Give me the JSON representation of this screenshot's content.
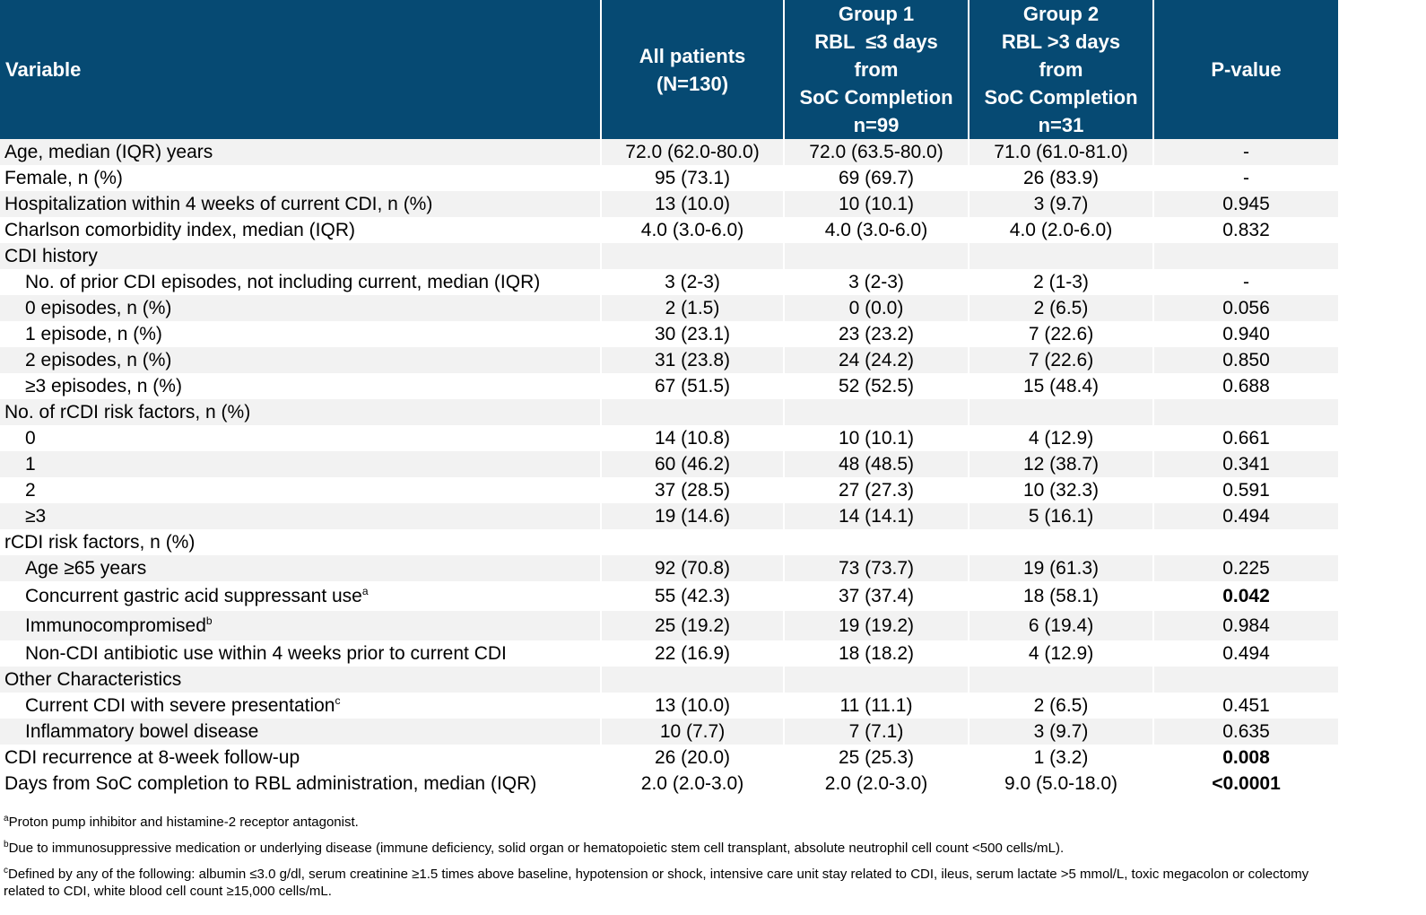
{
  "header": {
    "variable": "Variable",
    "all": [
      "All patients",
      "(N=130)"
    ],
    "group1": [
      "Group 1",
      "RBL  ≤3 days",
      "from",
      "SoC Completion",
      "n=99"
    ],
    "group2": [
      "Group 2",
      "RBL >3 days",
      "from",
      "SoC Completion",
      "n=31"
    ],
    "pvalue": "P-value"
  },
  "rows": [
    {
      "label": "Age, median (IQR) years",
      "sup": "",
      "all": "72.0 (62.0-80.0)",
      "g1": "72.0 (63.5-80.0)",
      "g2": "71.0 (61.0-81.0)",
      "p": "-"
    },
    {
      "label": "Female, n (%)",
      "sup": "",
      "all": "95 (73.1)",
      "g1": "69 (69.7)",
      "g2": "26 (83.9)",
      "p": "-"
    },
    {
      "label": "Hospitalization within 4 weeks of current CDI, n (%)",
      "sup": "",
      "all": "13 (10.0)",
      "g1": "10 (10.1)",
      "g2": "3 (9.7)",
      "p": "0.945"
    },
    {
      "label": "Charlson comorbidity index, median (IQR)",
      "sup": "",
      "all": "4.0 (3.0-6.0)",
      "g1": "4.0 (3.0-6.0)",
      "g2": "4.0 (2.0-6.0)",
      "p": "0.832"
    },
    {
      "label": "CDI history",
      "sup": "",
      "all": "",
      "g1": "",
      "g2": "",
      "p": ""
    },
    {
      "label": "No. of prior CDI episodes, not including current, median (IQR)",
      "sup": "",
      "all": "3 (2-3)",
      "g1": "3 (2-3)",
      "g2": "2 (1-3)",
      "p": "-"
    },
    {
      "label": "0 episodes, n (%)",
      "sup": "",
      "all": "2 (1.5)",
      "g1": "0 (0.0)",
      "g2": "2 (6.5)",
      "p": "0.056"
    },
    {
      "label": "1 episode, n (%)",
      "sup": "",
      "all": "30 (23.1)",
      "g1": "23 (23.2)",
      "g2": "7 (22.6)",
      "p": "0.940"
    },
    {
      "label": "2 episodes, n (%)",
      "sup": "",
      "all": "31 (23.8)",
      "g1": "24 (24.2)",
      "g2": "7 (22.6)",
      "p": "0.850"
    },
    {
      "label": "≥3 episodes, n (%)",
      "sup": "",
      "all": "67 (51.5)",
      "g1": "52 (52.5)",
      "g2": "15 (48.4)",
      "p": "0.688"
    },
    {
      "label": "No. of rCDI risk factors, n (%)",
      "sup": "",
      "all": "",
      "g1": "",
      "g2": "",
      "p": ""
    },
    {
      "label": "0",
      "sup": "",
      "all": "14 (10.8)",
      "g1": "10 (10.1)",
      "g2": "4 (12.9)",
      "p": "0.661"
    },
    {
      "label": "1",
      "sup": "",
      "all": "60 (46.2)",
      "g1": "48 (48.5)",
      "g2": "12 (38.7)",
      "p": "0.341"
    },
    {
      "label": "2",
      "sup": "",
      "all": "37 (28.5)",
      "g1": "27 (27.3)",
      "g2": "10 (32.3)",
      "p": "0.591"
    },
    {
      "label": "≥3",
      "sup": "",
      "all": "19 (14.6)",
      "g1": "14 (14.1)",
      "g2": "5 (16.1)",
      "p": "0.494"
    },
    {
      "label": "rCDI risk factors, n (%)",
      "sup": "",
      "all": "",
      "g1": "",
      "g2": "",
      "p": ""
    },
    {
      "label": "Age ≥65 years",
      "sup": "",
      "all": "92 (70.8)",
      "g1": "73 (73.7)",
      "g2": "19 (61.3)",
      "p": "0.225"
    },
    {
      "label": "Concurrent gastric acid suppressant use",
      "sup": "a",
      "all": "55 (42.3)",
      "g1": "37 (37.4)",
      "g2": "18 (58.1)",
      "p": "0.042"
    },
    {
      "label": "Immunocompromised",
      "sup": "b",
      "all": "25 (19.2)",
      "g1": "19 (19.2)",
      "g2": "6 (19.4)",
      "p": "0.984"
    },
    {
      "label": "Non-CDI antibiotic use within 4 weeks prior to current CDI",
      "sup": "",
      "all": "22 (16.9)",
      "g1": "18 (18.2)",
      "g2": "4 (12.9)",
      "p": "0.494"
    },
    {
      "label": "Other Characteristics",
      "sup": "",
      "all": "",
      "g1": "",
      "g2": "",
      "p": ""
    },
    {
      "label": "Current CDI with severe presentation",
      "sup": "c",
      "all": "13 (10.0)",
      "g1": "11 (11.1)",
      "g2": "2 (6.5)",
      "p": "0.451"
    },
    {
      "label": "Inflammatory bowel disease",
      "sup": "",
      "all": "10 (7.7)",
      "g1": "7 (7.1)",
      "g2": "3 (9.7)",
      "p": "0.635"
    },
    {
      "label": "CDI recurrence at 8-week follow-up",
      "sup": "",
      "all": "26 (20.0)",
      "g1": "25 (25.3)",
      "g2": "1 (3.2)",
      "p": "0.008"
    },
    {
      "label": "Days from SoC completion to RBL administration, median (IQR)",
      "sup": "",
      "all": "2.0 (2.0-3.0)",
      "g1": "2.0 (2.0-3.0)",
      "g2": "9.0 (5.0-18.0)",
      "p": "<0.0001"
    }
  ],
  "footnotes": [
    {
      "sup": "a",
      "text": "Proton pump inhibitor and histamine-2 receptor antagonist."
    },
    {
      "sup": "b",
      "text": "Due to immunosuppressive medication or underlying disease (immune deficiency, solid organ or hematopoietic stem cell transplant, absolute neutrophil cell count <500 cells/mL)."
    },
    {
      "sup": "c",
      "text": "Defined by any of the following: albumin ≤3.0 g/dl, serum creatinine ≥1.5 times above baseline, hypotension or shock, intensive care unit stay related to CDI, ileus, serum lactate >5 mmol/L, toxic megacolon or colectomy related to CDI, white blood cell count ≥15,000 cells/mL."
    }
  ]
}
